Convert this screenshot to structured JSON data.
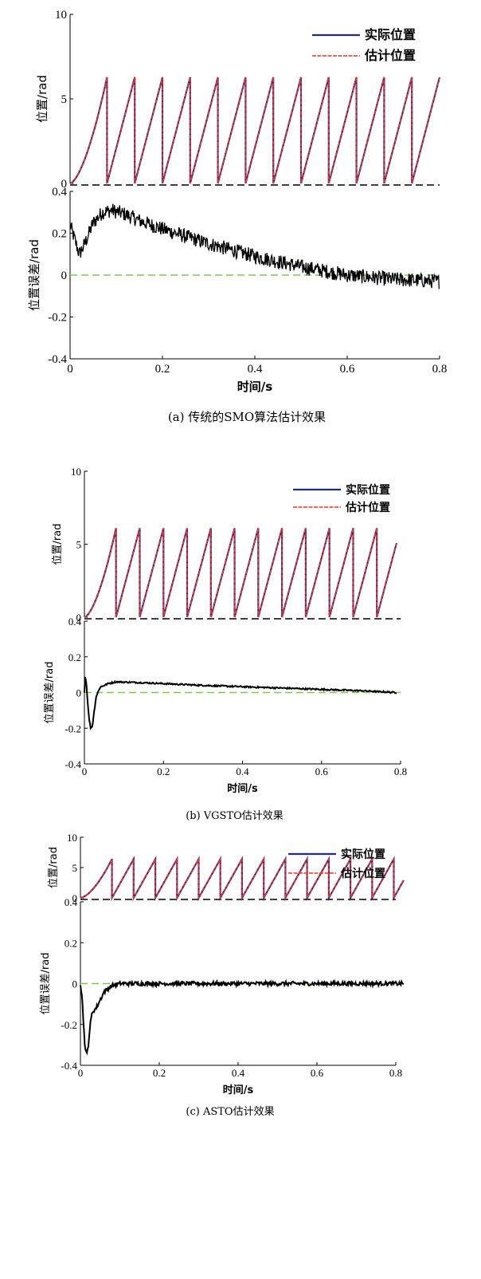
{
  "figure": {
    "panels": [
      {
        "caption": "(a) 传统的SMO算法估计效果",
        "x_label": "时间/s",
        "pos_ylabel": "位置/rad",
        "err_ylabel": "位置误差/rad",
        "x_ticks": [
          "0",
          "0.2",
          "0.4",
          "0.6",
          "0.8"
        ],
        "pos_y_ticks": [
          "10",
          "5",
          "0"
        ],
        "err_y_ticks": [
          "0.4",
          "0.2",
          "0",
          "-0.2",
          "-0.4"
        ],
        "legend": [
          "实际位置",
          "估计位置"
        ]
      },
      {
        "caption": "(b) VGSTO估计效果",
        "x_label": "时间/s",
        "pos_ylabel": "位置/rad",
        "err_ylabel": "位置误差/rad",
        "x_ticks": [
          "0",
          "0.2",
          "0.4",
          "0.6",
          "0.8"
        ],
        "pos_y_ticks": [
          "10",
          "5",
          "0"
        ],
        "err_y_ticks": [
          "0.4",
          "0.2",
          "0",
          "-0.2",
          "-0.4"
        ],
        "legend": [
          "实际位置",
          "估计位置"
        ]
      },
      {
        "caption": "(c) ASTO估计效果",
        "x_label": "时间/s",
        "pos_ylabel": "位置/rad",
        "err_ylabel": "位置误差/rad",
        "x_ticks": [
          "0",
          "0.2",
          "0.4",
          "0.6",
          "0.8"
        ],
        "pos_y_ticks": [
          "10",
          "5",
          "0"
        ],
        "err_y_ticks": [
          "0.4",
          "0.2",
          "0",
          "-0.2",
          "-0.4"
        ],
        "legend": [
          "实际位置",
          "估计位置"
        ]
      }
    ]
  },
  "colors": {
    "actual": "#1f2a8c",
    "estimated": "#e0392b",
    "error": "#000000",
    "zero_pos": "#000000",
    "zero_err": "#7ec850",
    "axis": "#000000"
  },
  "chart_data": [
    {
      "type": "line",
      "title": "(a) 传统的SMO算法估计效果",
      "xlabel": "时间/s",
      "ylabel": "位置/rad",
      "xlim": [
        0,
        0.8
      ],
      "ylim": [
        0,
        10
      ],
      "series": [
        {
          "name": "实际位置",
          "kind": "sawtooth",
          "peak": 6.28,
          "first_wrap_s": 0.08,
          "period_s": 0.06,
          "t_end": 0.8
        },
        {
          "name": "估计位置",
          "kind": "sawtooth",
          "peak": 6.28,
          "first_wrap_s": 0.08,
          "period_s": 0.06,
          "t_end": 0.8
        }
      ]
    },
    {
      "type": "line",
      "xlabel": "时间/s",
      "ylabel": "位置误差/rad",
      "xlim": [
        0,
        0.8
      ],
      "ylim": [
        -0.4,
        0.4
      ],
      "series": [
        {
          "name": "位置误差",
          "noise_amplitude": 0.035,
          "x": [
            0,
            0.01,
            0.02,
            0.03,
            0.05,
            0.07,
            0.09,
            0.12,
            0.15,
            0.2,
            0.3,
            0.4,
            0.5,
            0.6,
            0.7,
            0.8
          ],
          "y": [
            0.24,
            0.17,
            0.1,
            0.14,
            0.25,
            0.3,
            0.31,
            0.29,
            0.26,
            0.22,
            0.15,
            0.09,
            0.04,
            0.0,
            -0.02,
            -0.03
          ]
        }
      ]
    },
    {
      "type": "line",
      "title": "(b) VGSTO估计效果",
      "xlabel": "时间/s",
      "ylabel": "位置/rad",
      "xlim": [
        0,
        0.8
      ],
      "ylim": [
        0,
        10
      ],
      "series": [
        {
          "name": "实际位置",
          "kind": "sawtooth",
          "peak": 6.1,
          "first_wrap_s": 0.08,
          "period_s": 0.06,
          "t_end": 0.79
        },
        {
          "name": "估计位置",
          "kind": "sawtooth",
          "peak": 6.1,
          "first_wrap_s": 0.08,
          "period_s": 0.06,
          "t_end": 0.79
        }
      ]
    },
    {
      "type": "line",
      "xlabel": "时间/s",
      "ylabel": "位置误差/rad",
      "xlim": [
        0,
        0.8
      ],
      "ylim": [
        -0.4,
        0.4
      ],
      "series": [
        {
          "name": "位置误差",
          "noise_amplitude": 0.004,
          "x": [
            0,
            0.002,
            0.005,
            0.008,
            0.012,
            0.016,
            0.02,
            0.025,
            0.03,
            0.04,
            0.06,
            0.08,
            0.15,
            0.3,
            0.5,
            0.7,
            0.79
          ],
          "y": [
            0.0,
            0.1,
            0.05,
            -0.05,
            -0.15,
            -0.2,
            -0.19,
            -0.1,
            -0.02,
            0.03,
            0.05,
            0.06,
            0.055,
            0.04,
            0.025,
            0.01,
            0.0
          ]
        }
      ]
    },
    {
      "type": "line",
      "title": "(c) ASTO估计效果",
      "xlabel": "时间/s",
      "ylabel": "位置/rad",
      "xlim": [
        0,
        0.8
      ],
      "ylim": [
        0,
        10
      ],
      "series": [
        {
          "name": "实际位置",
          "kind": "sawtooth",
          "peak": 6.4,
          "first_wrap_s": 0.08,
          "period_s": 0.055,
          "t_end": 0.82
        },
        {
          "name": "估计位置",
          "kind": "sawtooth",
          "peak": 6.4,
          "first_wrap_s": 0.08,
          "period_s": 0.055,
          "t_end": 0.82
        }
      ]
    },
    {
      "type": "line",
      "xlabel": "时间/s",
      "ylabel": "位置误差/rad",
      "xlim": [
        0,
        0.8
      ],
      "ylim": [
        -0.4,
        0.4
      ],
      "series": [
        {
          "name": "位置误差",
          "noise_amplitude": 0.01,
          "x": [
            0,
            0.004,
            0.008,
            0.012,
            0.016,
            0.02,
            0.025,
            0.03,
            0.04,
            0.05,
            0.06,
            0.08,
            0.1,
            0.2,
            0.4,
            0.6,
            0.82
          ],
          "y": [
            0.0,
            -0.06,
            -0.2,
            -0.32,
            -0.35,
            -0.3,
            -0.2,
            -0.14,
            -0.12,
            -0.08,
            -0.04,
            -0.01,
            0.0,
            0.0,
            0.0,
            0.0,
            0.0
          ]
        }
      ]
    }
  ]
}
